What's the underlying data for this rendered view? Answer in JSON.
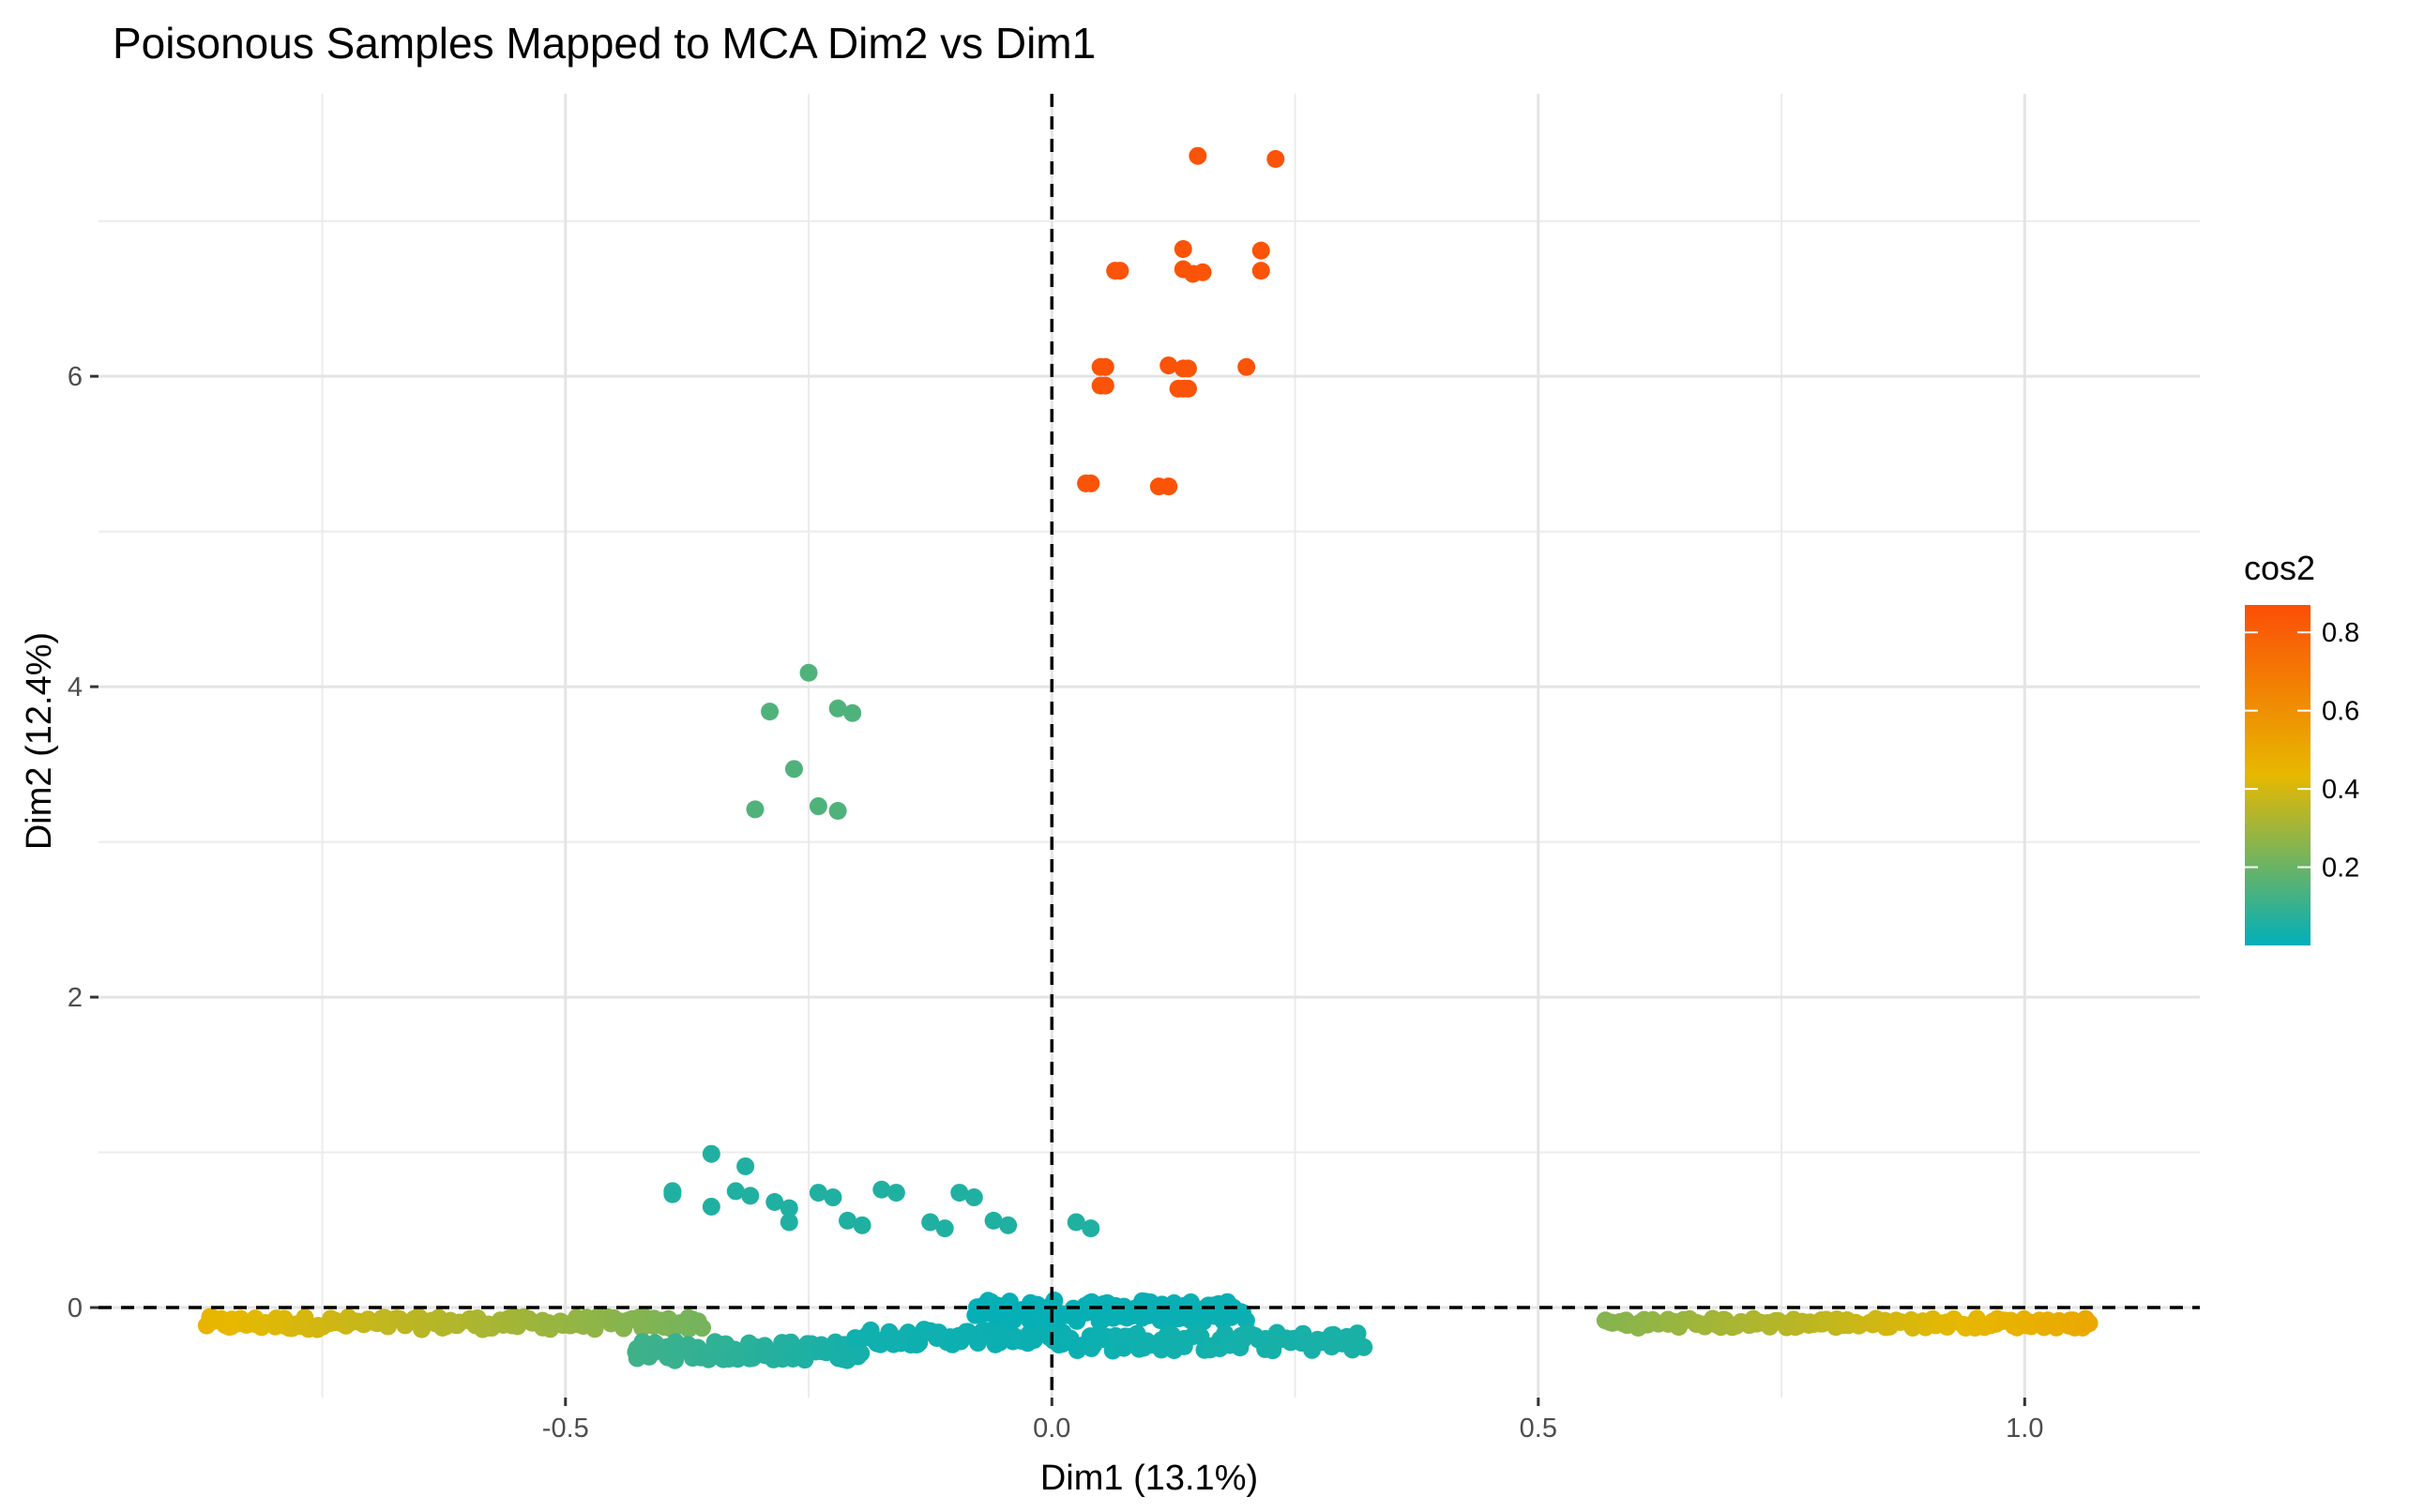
{
  "chart_data": {
    "type": "scatter",
    "title": "Poisonous Samples Mapped to MCA Dim2 vs Dim1",
    "xlabel": "Dim1 (13.1%)",
    "ylabel": "Dim2 (12.4%)",
    "xlim": [
      -0.98,
      1.18
    ],
    "ylim": [
      -0.58,
      7.82
    ],
    "x_ticks": [
      -0.5,
      0.0,
      0.5,
      1.0
    ],
    "x_tick_labels": [
      "-0.5",
      "0.0",
      "0.5",
      "1.0"
    ],
    "y_ticks": [
      0,
      2,
      4,
      6
    ],
    "y_tick_labels": [
      "0",
      "2",
      "4",
      "6"
    ],
    "grid": true,
    "reference_lines": {
      "x": 0,
      "y": 0,
      "style": "dashed"
    },
    "color_variable": "cos2",
    "colorbar": {
      "title": "cos2",
      "range": [
        0.0,
        0.87
      ],
      "ticks": [
        0.2,
        0.4,
        0.6,
        0.8
      ],
      "tick_labels": [
        "0.2",
        "0.4",
        "0.6",
        "0.8"
      ],
      "colors": [
        "#00AFBB",
        "#E7B800",
        "#FC4E07"
      ],
      "legend_position": "right"
    },
    "clusters": [
      {
        "points": [
          [
            0.15,
            7.42
          ],
          [
            0.23,
            7.4
          ],
          [
            0.135,
            6.82
          ],
          [
            0.215,
            6.81
          ],
          [
            0.065,
            6.68
          ],
          [
            0.07,
            6.68
          ],
          [
            0.135,
            6.69
          ],
          [
            0.145,
            6.66
          ],
          [
            0.155,
            6.67
          ],
          [
            0.215,
            6.68
          ],
          [
            0.05,
            6.06
          ],
          [
            0.055,
            6.06
          ],
          [
            0.12,
            6.07
          ],
          [
            0.135,
            6.05
          ],
          [
            0.14,
            6.05
          ],
          [
            0.2,
            6.06
          ],
          [
            0.05,
            5.94
          ],
          [
            0.055,
            5.94
          ],
          [
            0.13,
            5.92
          ],
          [
            0.135,
            5.92
          ],
          [
            0.14,
            5.92
          ],
          [
            0.035,
            5.31
          ],
          [
            0.04,
            5.31
          ],
          [
            0.11,
            5.29
          ],
          [
            0.12,
            5.29
          ]
        ],
        "cos2": 0.85
      },
      {
        "points": [
          [
            -0.25,
            4.09
          ],
          [
            -0.29,
            3.84
          ],
          [
            -0.22,
            3.86
          ],
          [
            -0.205,
            3.83
          ],
          [
            -0.265,
            3.47
          ],
          [
            -0.24,
            3.23
          ],
          [
            -0.305,
            3.21
          ],
          [
            -0.22,
            3.2
          ]
        ],
        "cos2": 0.15
      },
      {
        "points": [
          [
            -0.35,
            0.99
          ],
          [
            -0.315,
            0.91
          ],
          [
            -0.39,
            0.75
          ],
          [
            -0.39,
            0.73
          ],
          [
            -0.325,
            0.75
          ],
          [
            -0.31,
            0.72
          ],
          [
            -0.285,
            0.68
          ],
          [
            -0.27,
            0.64
          ],
          [
            -0.35,
            0.65
          ],
          [
            -0.24,
            0.74
          ],
          [
            -0.225,
            0.71
          ],
          [
            -0.175,
            0.76
          ],
          [
            -0.16,
            0.74
          ],
          [
            -0.095,
            0.74
          ],
          [
            -0.08,
            0.71
          ],
          [
            -0.06,
            0.56
          ],
          [
            -0.045,
            0.53
          ],
          [
            -0.27,
            0.55
          ],
          [
            -0.21,
            0.56
          ],
          [
            -0.195,
            0.53
          ],
          [
            -0.125,
            0.55
          ],
          [
            -0.11,
            0.51
          ],
          [
            0.025,
            0.55
          ],
          [
            0.04,
            0.51
          ]
        ],
        "cos2": 0.06
      }
    ],
    "bands": [
      {
        "x_range": [
          -0.87,
          -0.36
        ],
        "y": -0.1,
        "jitter": 0.04,
        "count": 140,
        "cos2_range": [
          0.45,
          0.22
        ]
      },
      {
        "x_range": [
          -0.43,
          -0.2
        ],
        "y": -0.28,
        "jitter": 0.06,
        "count": 90,
        "cos2_range": [
          0.12,
          0.04
        ]
      },
      {
        "x_range": [
          -0.2,
          0.01
        ],
        "y": -0.19,
        "jitter": 0.05,
        "count": 70,
        "cos2_range": [
          0.03,
          0.02
        ]
      },
      {
        "x_range": [
          -0.08,
          0.2
        ],
        "y": -0.02,
        "jitter": 0.07,
        "count": 110,
        "cos2_range": [
          0.01,
          0.02
        ]
      },
      {
        "x_range": [
          0.0,
          0.32
        ],
        "y": -0.22,
        "jitter": 0.06,
        "count": 90,
        "cos2_range": [
          0.02,
          0.05
        ]
      },
      {
        "x_range": [
          0.57,
          1.07
        ],
        "y": -0.1,
        "jitter": 0.03,
        "count": 130,
        "cos2_range": [
          0.25,
          0.5
        ]
      }
    ]
  }
}
